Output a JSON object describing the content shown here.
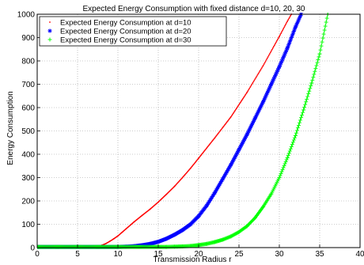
{
  "chart_data": {
    "type": "line",
    "title": "Expected Energy Consumption with fixed distance d=10, 20, 30",
    "xlabel": "Transmission Radius r",
    "ylabel": "Energy Consumption",
    "xlim": [
      0,
      40
    ],
    "ylim": [
      0,
      1000
    ],
    "xticks": [
      "0",
      "5",
      "10",
      "15",
      "20",
      "25",
      "30",
      "35",
      "40"
    ],
    "yticks": [
      "0",
      "100",
      "200",
      "300",
      "400",
      "500",
      "600",
      "700",
      "800",
      "900",
      "1000"
    ],
    "grid": true,
    "legend_position": "top-left",
    "series": [
      {
        "name": "Expected Energy Consumption at d=10",
        "color": "#ff0000",
        "marker": "dot",
        "x": [
          0,
          7,
          7.5,
          8,
          8.5,
          9,
          9.5,
          10,
          11,
          12,
          13,
          14,
          15,
          16,
          17,
          18,
          19,
          20,
          22,
          24,
          26,
          28,
          30,
          31,
          31.5
        ],
        "y": [
          3,
          3,
          5,
          10,
          17,
          27,
          38,
          50,
          80,
          110,
          138,
          165,
          195,
          228,
          262,
          300,
          340,
          383,
          470,
          560,
          665,
          780,
          905,
          970,
          1000
        ]
      },
      {
        "name": "Expected Energy Consumption at d=20",
        "color": "#0000ff",
        "marker": "star",
        "x": [
          0,
          10,
          11,
          12,
          13,
          14,
          15,
          16,
          17,
          18,
          19,
          20,
          21,
          22,
          23,
          24,
          25,
          26,
          27,
          28,
          29,
          30,
          31,
          32,
          32.7
        ],
        "y": [
          3,
          3,
          4,
          6,
          10,
          16,
          25,
          38,
          55,
          75,
          100,
          135,
          180,
          235,
          295,
          355,
          420,
          485,
          555,
          625,
          700,
          775,
          855,
          945,
          1000
        ]
      },
      {
        "name": "Expected Energy Consumption at d=30",
        "color": "#00ff00",
        "marker": "plus",
        "x": [
          0,
          16,
          17,
          18,
          19,
          20,
          21,
          22,
          23,
          24,
          25,
          26,
          27,
          28,
          29,
          30,
          31,
          32,
          33,
          34,
          35,
          36
        ],
        "y": [
          3,
          3,
          4,
          5,
          7,
          11,
          16,
          24,
          34,
          48,
          67,
          92,
          128,
          175,
          230,
          300,
          385,
          480,
          590,
          705,
          830,
          1000
        ]
      }
    ]
  }
}
